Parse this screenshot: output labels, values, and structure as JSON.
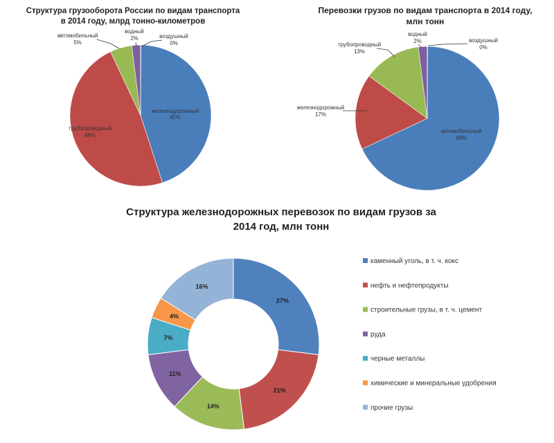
{
  "chart_data": [
    {
      "type": "pie",
      "title_lines": [
        "Структура грузооборота России по видам транспорта",
        "в 2014 году, млрд тонно-километров"
      ],
      "slices": [
        {
          "name": "железнодорожный",
          "value": 45,
          "label": "45%",
          "color": "#4a7ebb"
        },
        {
          "name": "трубопроводный",
          "value": 48,
          "label": "48%",
          "color": "#be4b48"
        },
        {
          "name": "автомобильный",
          "value": 5,
          "label": "5%",
          "color": "#98b954"
        },
        {
          "name": "водный",
          "value": 2,
          "label": "2%",
          "color": "#7d60a0"
        },
        {
          "name": "воздушный",
          "value": 0,
          "label": "0%",
          "color": "#46aac5"
        }
      ]
    },
    {
      "type": "pie",
      "title_lines": [
        "Перевозки грузов по видам транспорта в 2014 году,",
        "млн тонн"
      ],
      "slices": [
        {
          "name": "автомобильный",
          "value": 68,
          "label": "68%",
          "color": "#4a7ebb"
        },
        {
          "name": "железнодорожный",
          "value": 17,
          "label": "17%",
          "color": "#be4b48"
        },
        {
          "name": "трубопроводный",
          "value": 13,
          "label": "13%",
          "color": "#98b954"
        },
        {
          "name": "водный",
          "value": 2,
          "label": "2%",
          "color": "#7d60a0"
        },
        {
          "name": "воздушный",
          "value": 0,
          "label": "0%",
          "color": "#46aac5"
        }
      ]
    },
    {
      "type": "donut",
      "title_lines": [
        "Структура железнодорожных перевозок по видам грузов за",
        "2014 год, млн тонн"
      ],
      "legend_position": "right",
      "slices": [
        {
          "name": "каменный уголь, в т. ч. кокс",
          "value": 27,
          "label": "27%",
          "color": "#4f81bd"
        },
        {
          "name": "нефть и нефтепродукты",
          "value": 21,
          "label": "21%",
          "color": "#c0504d"
        },
        {
          "name": "строительные грузы, в т. ч. цемент",
          "value": 14,
          "label": "14%",
          "color": "#9bbb59"
        },
        {
          "name": "руда",
          "value": 11,
          "label": "11%",
          "color": "#8064a2"
        },
        {
          "name": "черные металлы",
          "value": 7,
          "label": "7%",
          "color": "#4bacc6"
        },
        {
          "name": "химические и минеральные удобрения",
          "value": 4,
          "label": "4%",
          "color": "#f79646"
        },
        {
          "name": "прочие грузы",
          "value": 16,
          "label": "16%",
          "color": "#95b3d7"
        }
      ]
    }
  ]
}
